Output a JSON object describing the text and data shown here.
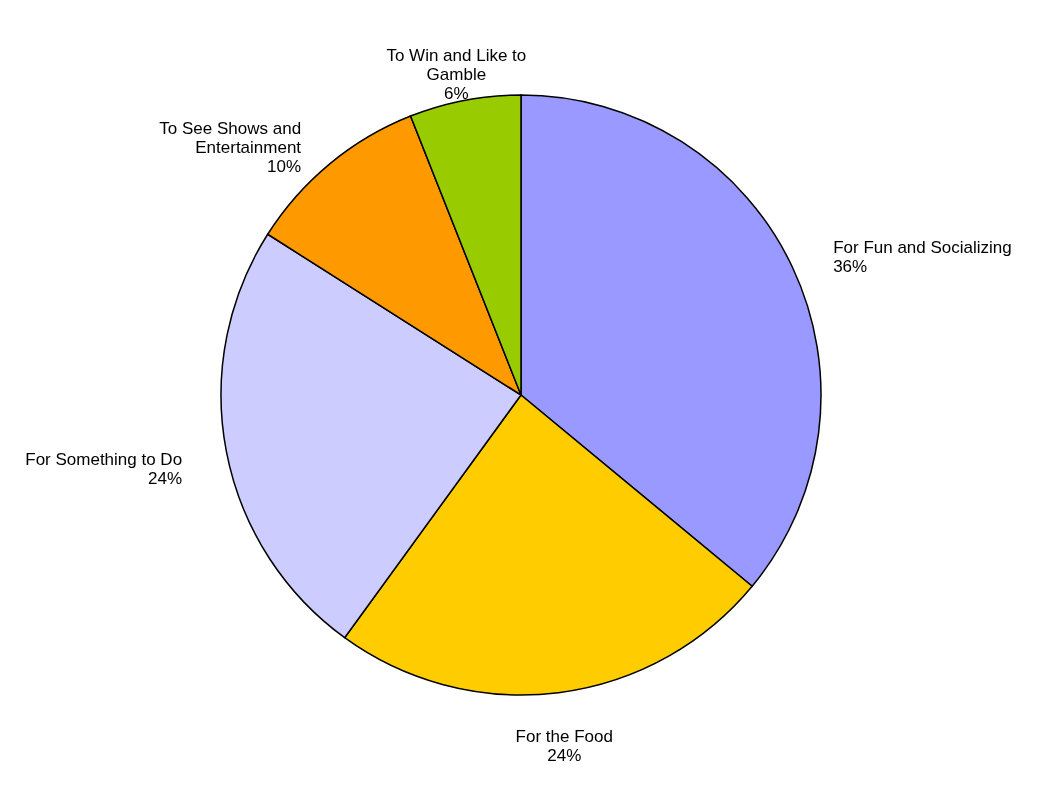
{
  "chart_data": {
    "type": "pie",
    "categories": [
      "For Fun and Socializing",
      "For the Food",
      "For Something to Do",
      "To See Shows and\nEntertainment",
      "To Win and Like to\nGamble"
    ],
    "values": [
      36,
      24,
      24,
      10,
      6
    ],
    "value_labels": [
      "36%",
      "24%",
      "24%",
      "10%",
      "6%"
    ],
    "colors": [
      "#9999ff",
      "#ffcc00",
      "#ccccff",
      "#ff9900",
      "#99cc00"
    ]
  }
}
